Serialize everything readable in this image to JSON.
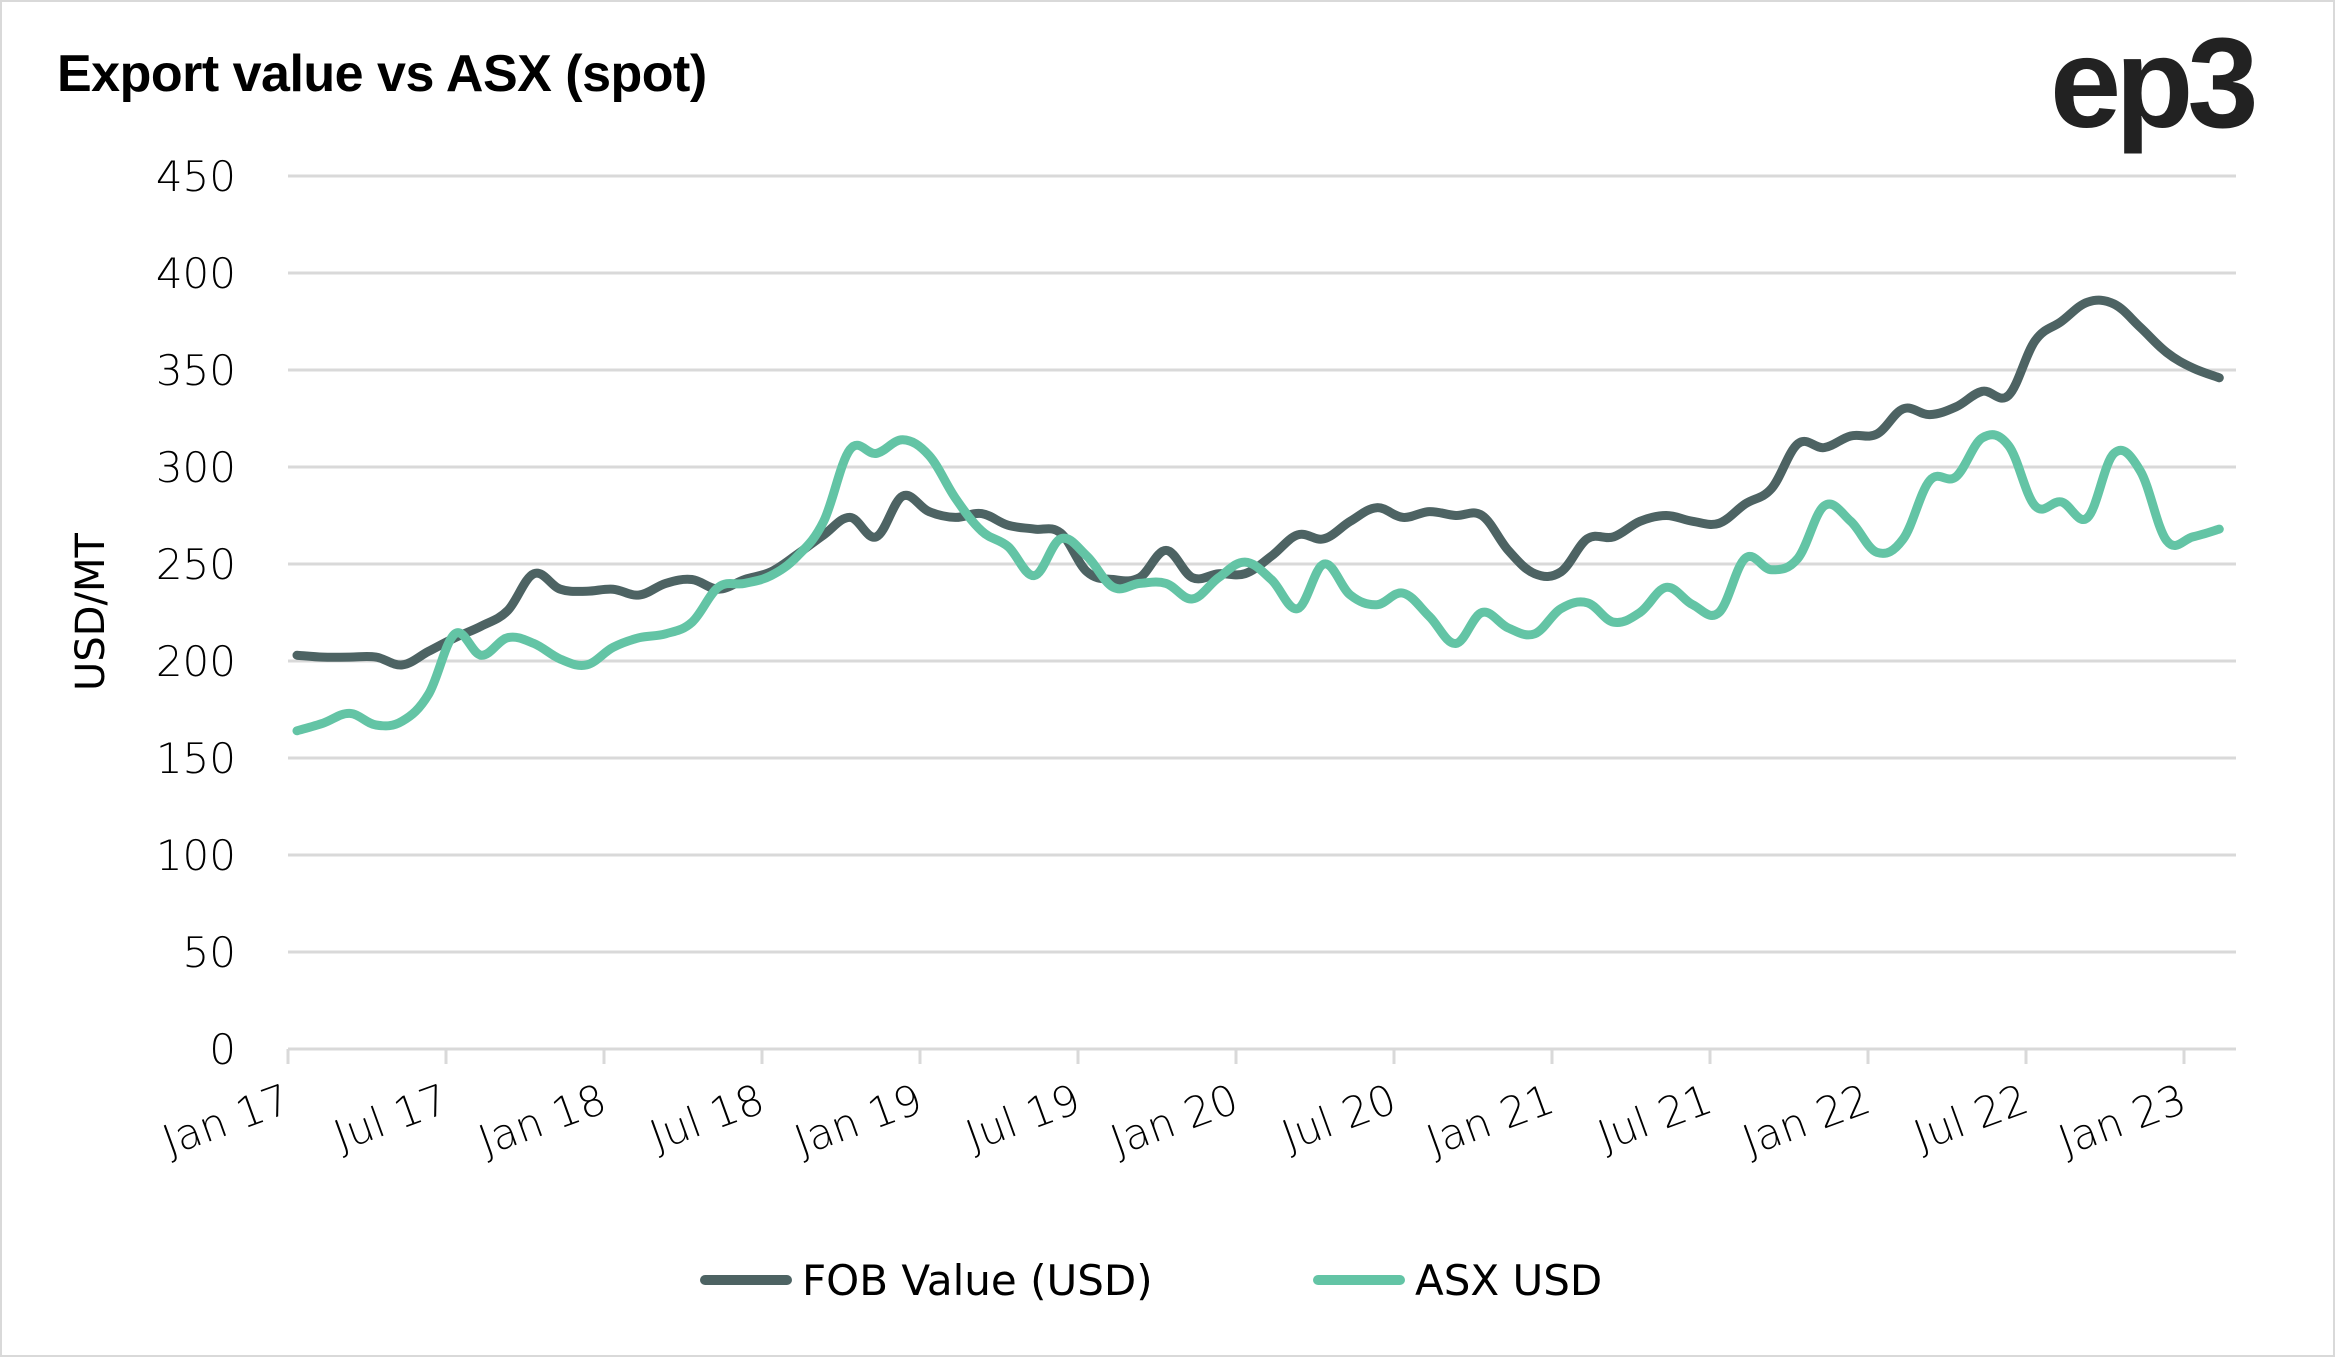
{
  "header": {
    "title": "Export value vs ASX (spot)",
    "logo_text": "ep3"
  },
  "chart_data": {
    "type": "line",
    "title": "Export value vs ASX (spot)",
    "xlabel": "",
    "ylabel": "USD/MT",
    "ylim": [
      0,
      450
    ],
    "yticks": [
      0,
      50,
      100,
      150,
      200,
      250,
      300,
      350,
      400,
      450
    ],
    "grid": true,
    "legend_position": "bottom",
    "x_start": "Jan 17",
    "x_frequency": "monthly",
    "x_tick_labels": [
      "Jan 17",
      "Jul 17",
      "Jan 18",
      "Jul 18",
      "Jan 19",
      "Jul 19",
      "Jan 20",
      "Jul 20",
      "Jan 21",
      "Jul 21",
      "Jan 22",
      "Jul 22",
      "Jan 23"
    ],
    "x_tick_months": [
      0,
      6,
      12,
      18,
      24,
      30,
      36,
      42,
      48,
      54,
      60,
      66,
      72
    ],
    "x_axis_months": 74,
    "series": [
      {
        "name": "FOB Value (USD)",
        "color": "#4d6363",
        "values": [
          203,
          202,
          202,
          202,
          198,
          205,
          212,
          218,
          226,
          245,
          237,
          236,
          237,
          234,
          240,
          242,
          237,
          242,
          246,
          255,
          265,
          274,
          264,
          285,
          277,
          274,
          276,
          270,
          268,
          266,
          246,
          242,
          243,
          257,
          243,
          245,
          245,
          254,
          265,
          263,
          272,
          279,
          274,
          277,
          275,
          275,
          257,
          245,
          246,
          263,
          264,
          272,
          275,
          272,
          271,
          281,
          289,
          312,
          310,
          316,
          317,
          330,
          327,
          331,
          339,
          337,
          365,
          375,
          385,
          384,
          372,
          359,
          351,
          346
        ]
      },
      {
        "name": "ASX USD",
        "color": "#63c4a5",
        "values": [
          164,
          168,
          173,
          167,
          169,
          183,
          214,
          203,
          212,
          209,
          201,
          198,
          207,
          212,
          214,
          220,
          238,
          240,
          244,
          254,
          272,
          309,
          307,
          314,
          306,
          284,
          267,
          259,
          244,
          263,
          254,
          238,
          240,
          240,
          232,
          243,
          251,
          242,
          227,
          250,
          234,
          229,
          235,
          223,
          209,
          225,
          217,
          214,
          227,
          230,
          220,
          225,
          238,
          229,
          225,
          253,
          247,
          253,
          280,
          272,
          256,
          263,
          293,
          295,
          315,
          311,
          280,
          282,
          274,
          307,
          298,
          262,
          264,
          268
        ]
      }
    ]
  },
  "colors": {
    "gridline": "#d9d9d9",
    "fob": "#4d6363",
    "asx": "#63c4a5"
  }
}
